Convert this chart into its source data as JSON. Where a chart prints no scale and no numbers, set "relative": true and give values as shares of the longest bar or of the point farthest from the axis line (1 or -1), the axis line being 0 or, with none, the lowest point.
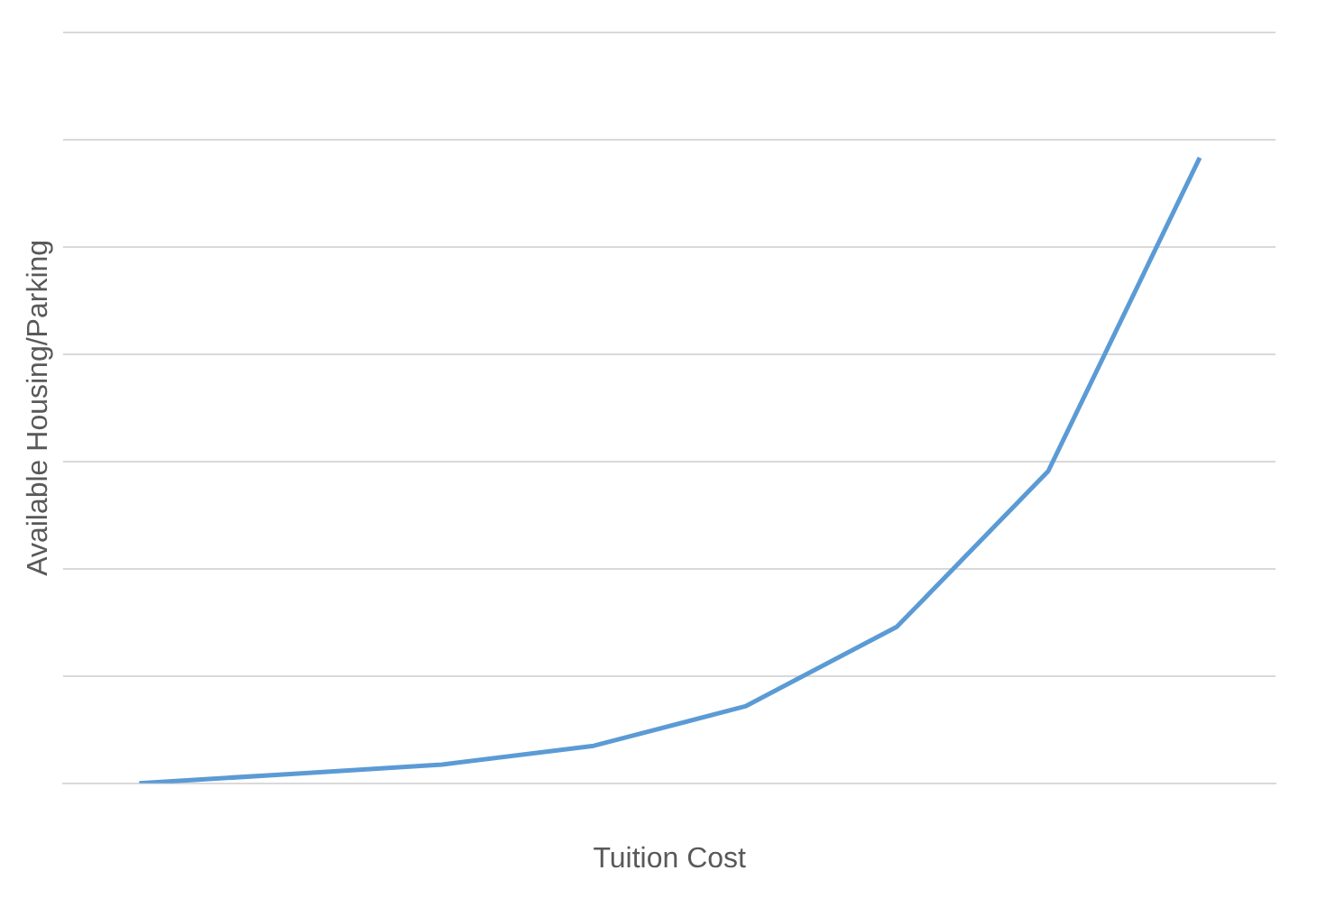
{
  "chart_data": {
    "type": "line",
    "xlabel": "Tuition Cost",
    "ylabel": "Available Housing/Parking",
    "relative": true,
    "grid": "y",
    "marker": "none",
    "line_style": "solid",
    "categories": [
      null,
      null,
      null,
      null,
      null,
      null,
      null,
      null
    ],
    "series": [
      {
        "color": "#5b9bd5",
        "values": [
          0,
          0.015,
          0.03,
          0.06,
          0.123,
          0.25,
          0.499,
          1
        ]
      }
    ]
  }
}
